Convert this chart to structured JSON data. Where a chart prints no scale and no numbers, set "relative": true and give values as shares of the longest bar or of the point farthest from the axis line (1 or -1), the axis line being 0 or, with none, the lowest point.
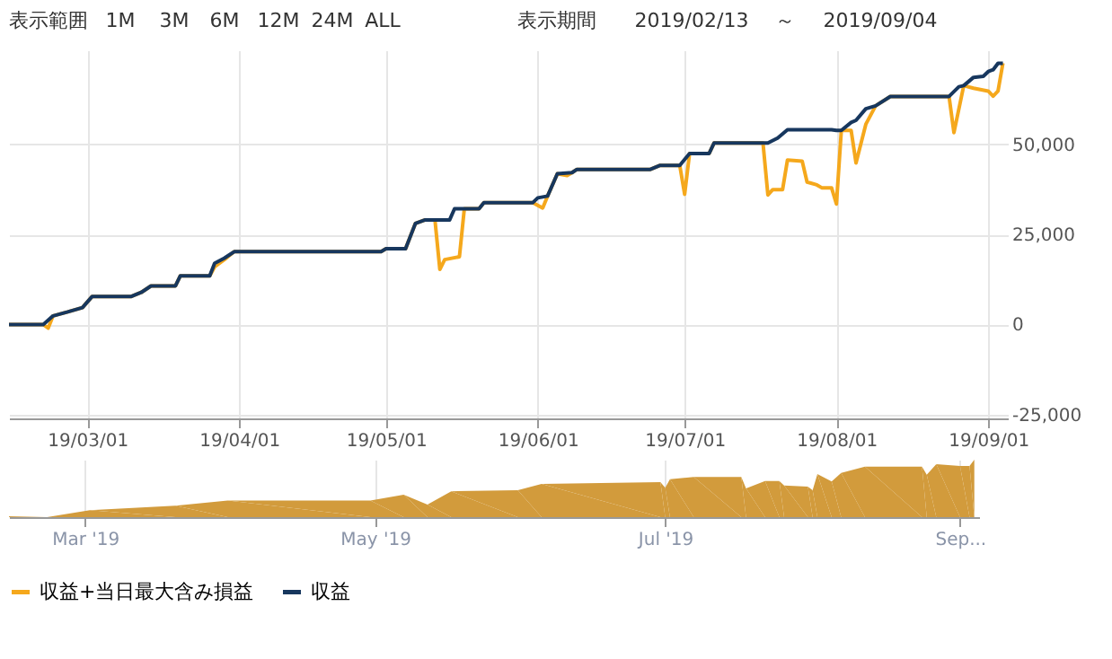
{
  "chart_data": [
    {
      "type": "line",
      "annotations": [
        "表示範囲",
        "1M",
        "3M",
        "6M",
        "12M",
        "24M",
        "ALL",
        "表示期間",
        "2019/02/13",
        "～",
        "2019/09/04"
      ],
      "xlim": [
        "2019-02-13",
        "2019-09-05"
      ],
      "xticks": [
        {
          "value": "2019-03-01",
          "label": "19/03/01"
        },
        {
          "value": "2019-04-01",
          "label": "19/04/01"
        },
        {
          "value": "2019-05-01",
          "label": "19/05/01"
        },
        {
          "value": "2019-06-01",
          "label": "19/06/01"
        },
        {
          "value": "2019-07-01",
          "label": "19/07/01"
        },
        {
          "value": "2019-08-01",
          "label": "19/08/01"
        },
        {
          "value": "2019-09-01",
          "label": "19/09/01"
        }
      ],
      "ylim": [
        -26000,
        76000
      ],
      "yticks": [
        {
          "value": -25000,
          "label": "-25,000"
        },
        0,
        {
          "value": 25000,
          "label": "25,000"
        },
        {
          "value": 50000,
          "label": "50,000"
        }
      ],
      "grid": true,
      "legend": "bottom",
      "line_style": "solid",
      "marker": "none",
      "series": [
        {
          "name": "収益+当日最大含み損益",
          "color": "#f5a81c",
          "x": [
            "2019-02-13",
            "2019-02-20",
            "2019-02-21",
            "2019-02-22",
            "2019-02-25",
            "2019-02-28",
            "2019-03-02",
            "2019-03-10",
            "2019-03-12",
            "2019-03-14",
            "2019-03-19",
            "2019-03-20",
            "2019-03-26",
            "2019-03-27",
            "2019-03-29",
            "2019-03-31",
            "2019-04-30",
            "2019-05-01",
            "2019-05-05",
            "2019-05-07",
            "2019-05-09",
            "2019-05-11",
            "2019-05-12",
            "2019-05-13",
            "2019-05-16",
            "2019-05-17",
            "2019-05-20",
            "2019-05-21",
            "2019-05-31",
            "2019-06-02",
            "2019-06-03",
            "2019-06-05",
            "2019-06-07",
            "2019-06-08",
            "2019-06-09",
            "2019-06-24",
            "2019-06-26",
            "2019-06-30",
            "2019-07-01",
            "2019-07-02",
            "2019-07-06",
            "2019-07-07",
            "2019-07-17",
            "2019-07-18",
            "2019-07-19",
            "2019-07-21",
            "2019-07-22",
            "2019-07-25",
            "2019-07-26",
            "2019-07-28",
            "2019-07-29",
            "2019-07-31",
            "2019-08-01",
            "2019-08-02",
            "2019-08-04",
            "2019-08-05",
            "2019-08-07",
            "2019-08-09",
            "2019-08-12",
            "2019-08-24",
            "2019-08-25",
            "2019-08-27",
            "2019-08-29",
            "2019-09-01",
            "2019-09-02",
            "2019-09-03",
            "2019-09-04"
          ],
          "values": [
            0,
            0,
            -1000,
            2400,
            3500,
            4700,
            7800,
            7800,
            8900,
            10700,
            10700,
            13500,
            13500,
            16000,
            18000,
            20200,
            20200,
            21000,
            21000,
            28000,
            29000,
            29000,
            15300,
            18000,
            18800,
            32100,
            32100,
            33800,
            33800,
            32300,
            35600,
            41800,
            41300,
            42100,
            43000,
            43000,
            44100,
            44100,
            36100,
            47400,
            47400,
            50300,
            50300,
            35900,
            37400,
            37400,
            45600,
            45300,
            39500,
            38700,
            37900,
            37900,
            33400,
            53800,
            53800,
            44800,
            55500,
            60600,
            63200,
            63200,
            53200,
            66200,
            65500,
            64700,
            63300,
            64700,
            72400
          ]
        },
        {
          "name": "収益",
          "color": "#17375e",
          "x": [
            "2019-02-13",
            "2019-02-20",
            "2019-02-22",
            "2019-02-25",
            "2019-02-28",
            "2019-03-02",
            "2019-03-10",
            "2019-03-12",
            "2019-03-14",
            "2019-03-19",
            "2019-03-20",
            "2019-03-26",
            "2019-03-27",
            "2019-03-29",
            "2019-03-31",
            "2019-04-30",
            "2019-05-01",
            "2019-05-05",
            "2019-05-07",
            "2019-05-09",
            "2019-05-14",
            "2019-05-15",
            "2019-05-20",
            "2019-05-21",
            "2019-05-31",
            "2019-06-01",
            "2019-06-03",
            "2019-06-05",
            "2019-06-08",
            "2019-06-09",
            "2019-06-24",
            "2019-06-26",
            "2019-06-30",
            "2019-07-02",
            "2019-07-06",
            "2019-07-07",
            "2019-07-18",
            "2019-07-20",
            "2019-07-22",
            "2019-07-31",
            "2019-08-01",
            "2019-08-02",
            "2019-08-04",
            "2019-08-05",
            "2019-08-07",
            "2019-08-09",
            "2019-08-12",
            "2019-08-24",
            "2019-08-26",
            "2019-08-27",
            "2019-08-29",
            "2019-08-31",
            "2019-09-01",
            "2019-09-02",
            "2019-09-03",
            "2019-09-04"
          ],
          "values": [
            0,
            0,
            2400,
            3500,
            4700,
            7800,
            7800,
            8900,
            10700,
            10700,
            13500,
            13500,
            17000,
            18400,
            20200,
            20200,
            21000,
            21000,
            28000,
            29000,
            29000,
            32100,
            32100,
            33800,
            33800,
            35100,
            35600,
            41800,
            42100,
            43000,
            43000,
            44100,
            44100,
            47400,
            47400,
            50300,
            50300,
            51700,
            54000,
            54000,
            53800,
            53800,
            56000,
            56600,
            59800,
            60600,
            63200,
            63200,
            65900,
            66200,
            68500,
            68800,
            70100,
            70600,
            72400,
            72400
          ]
        }
      ]
    },
    {
      "type": "area",
      "relative": true,
      "xlim": [
        "2019-02-13",
        "2019-09-05"
      ],
      "xticks": [
        {
          "value": "2019-03-01",
          "label": "Mar '19"
        },
        {
          "value": "2019-05-01",
          "label": "May '19"
        },
        {
          "value": "2019-07-01",
          "label": "Jul '19"
        },
        {
          "value": "2019-09-01",
          "label": "Sep..."
        }
      ],
      "grid": "x",
      "series": [
        {
          "color": "#d29b3c",
          "x": [
            "2019-02-13",
            "2019-02-21",
            "2019-03-02",
            "2019-03-20",
            "2019-03-31",
            "2019-04-30",
            "2019-05-07",
            "2019-05-12",
            "2019-05-17",
            "2019-05-31",
            "2019-06-05",
            "2019-06-30",
            "2019-07-01",
            "2019-07-02",
            "2019-07-07",
            "2019-07-17",
            "2019-07-18",
            "2019-07-22",
            "2019-07-25",
            "2019-07-26",
            "2019-07-31",
            "2019-08-01",
            "2019-08-02",
            "2019-08-05",
            "2019-08-07",
            "2019-08-12",
            "2019-08-24",
            "2019-08-25",
            "2019-08-27",
            "2019-09-01",
            "2019-09-03",
            "2019-09-04"
          ],
          "values": [
            0.014,
            0,
            0.12,
            0.2,
            0.29,
            0.29,
            0.39,
            0.22,
            0.45,
            0.47,
            0.58,
            0.61,
            0.51,
            0.66,
            0.7,
            0.7,
            0.5,
            0.63,
            0.63,
            0.55,
            0.53,
            0.47,
            0.75,
            0.62,
            0.77,
            0.88,
            0.88,
            0.74,
            0.92,
            0.89,
            0.89,
            1
          ]
        }
      ]
    }
  ]
}
